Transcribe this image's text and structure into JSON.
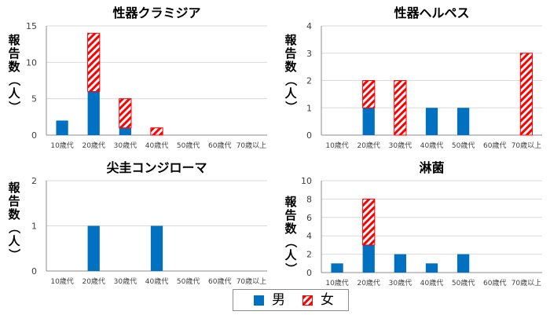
{
  "chart_data": [
    {
      "type": "bar",
      "stacked": true,
      "title": "性器クラミジア",
      "ylabel": "報告数（人）",
      "categories": [
        "10歳代",
        "20歳代",
        "30歳代",
        "40歳代",
        "50歳代",
        "60歳代",
        "70歳以上"
      ],
      "series": [
        {
          "name": "男",
          "values": [
            2,
            6,
            1,
            0,
            0,
            0,
            0
          ]
        },
        {
          "name": "女",
          "values": [
            0,
            8,
            4,
            1,
            0,
            0,
            0
          ]
        }
      ],
      "ylim": [
        0,
        15
      ],
      "yticks": [
        0,
        5,
        10,
        15
      ],
      "grid": true
    },
    {
      "type": "bar",
      "stacked": true,
      "title": "性器ヘルペス",
      "ylabel": "報告数（人）",
      "categories": [
        "10歳代",
        "20歳代",
        "30歳代",
        "40歳代",
        "50歳代",
        "60歳代",
        "70歳以上"
      ],
      "series": [
        {
          "name": "男",
          "values": [
            0,
            1,
            0,
            1,
            1,
            0,
            0
          ]
        },
        {
          "name": "女",
          "values": [
            0,
            1,
            2,
            0,
            0,
            0,
            3
          ]
        }
      ],
      "ylim": [
        0,
        4
      ],
      "yticks": [
        0,
        1,
        2,
        3,
        4
      ],
      "grid": true
    },
    {
      "type": "bar",
      "stacked": true,
      "title": "尖圭コンジローマ",
      "ylabel": "報告数（人）",
      "categories": [
        "10歳代",
        "20歳代",
        "30歳代",
        "40歳代",
        "50歳代",
        "60歳代",
        "70歳以上"
      ],
      "series": [
        {
          "name": "男",
          "values": [
            0,
            1,
            0,
            1,
            0,
            0,
            0
          ]
        },
        {
          "name": "女",
          "values": [
            0,
            0,
            0,
            0,
            0,
            0,
            0
          ]
        }
      ],
      "ylim": [
        0,
        2
      ],
      "yticks": [
        0,
        1,
        2
      ],
      "grid": true
    },
    {
      "type": "bar",
      "stacked": true,
      "title": "淋菌",
      "ylabel": "報告数（人）",
      "categories": [
        "10歳代",
        "20歳代",
        "30歳代",
        "40歳代",
        "50歳代",
        "60歳代",
        "70歳以上"
      ],
      "series": [
        {
          "name": "男",
          "values": [
            1,
            3,
            2,
            1,
            2,
            0,
            0
          ]
        },
        {
          "name": "女",
          "values": [
            0,
            5,
            0,
            0,
            0,
            0,
            0
          ]
        }
      ],
      "ylim": [
        0,
        10
      ],
      "yticks": [
        0,
        2,
        4,
        6,
        8,
        10
      ],
      "grid": true
    }
  ],
  "legend": {
    "items": [
      {
        "label": "男",
        "style": "solid",
        "color": "#0070c0"
      },
      {
        "label": "女",
        "style": "hatched",
        "color": "#ff0000"
      }
    ]
  },
  "colors": {
    "male": "#0070c0",
    "female_hatch": "#ff0000",
    "grid": "#d9d9d9",
    "axis": "#8c8c8c",
    "text": "#000000",
    "tick_text": "#404040"
  }
}
